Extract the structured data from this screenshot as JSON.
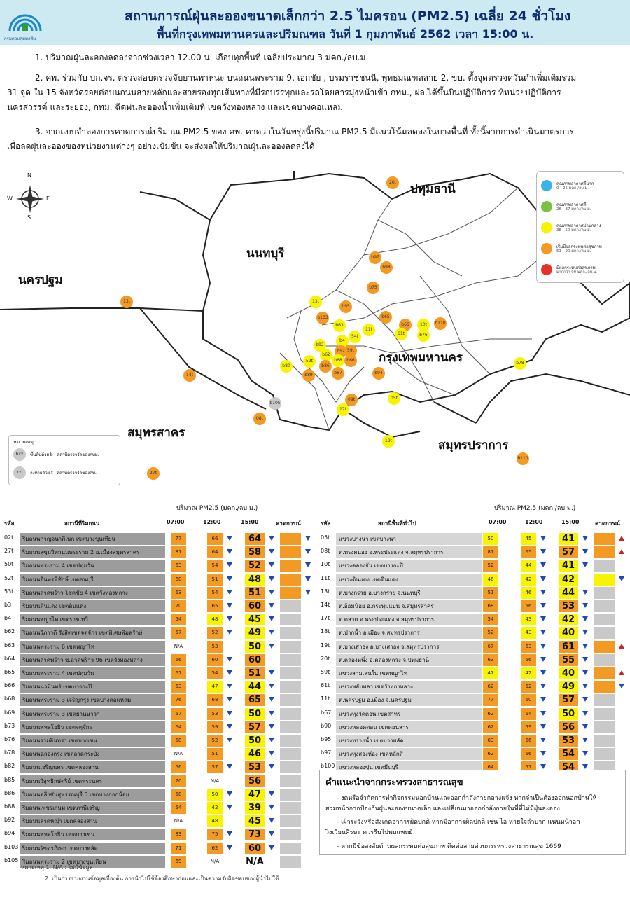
{
  "header": {
    "title": "สถานการณ์ฝุ่นละอองขนาดเล็กกว่า 2.5 ไมครอน (PM2.5) เฉลี่ย 24 ชั่วโมง",
    "subtitle": "พื้นที่กรุงเทพมหานครและปริมณฑล วันที่ 1 กุมภาพันธ์ 2562 เวลา 15:00 น.",
    "logo_text": "กรมควบคุมมลพิษ"
  },
  "summary": [
    "1. ปริมาณฝุ่นละอองลดลงจากช่วงเวลา 12.00 น. เกือบทุกพื้นที่ เฉลี่ยประมาณ 3 มคก./ลบ.ม.",
    "2. คพ. ร่วมกับ บก.จร. ตรวจสอบตรวจจับยานพาหนะ บนถนนพระราม 9, เอกชัย , บรมราชชนนี, พุทธมณฑลสาย 2, ขบ. ตั้งจุดตรวจควันดำเพิ่มเติมรวม",
    "31 จุด ใน 15 จังหวัดรอยต่อบนถนนสายหลักและสายรองทุกเส้นทางที่มีรถบรรทุกและรถโดยสารมุ่งหน้าเข้า กทม., ฝล.ได้ขึ้นบินปฏิบัติการ ที่หน่วยปฏิบัติการ",
    "นครสวรรค์ และระยอง, กทม. ฉีดพ่นละอองน้ำเพิ่มเติมที่ เขตวังทองหลาง และเขตบางคอแหลม",
    "3. จากแบบจำลองการคาดการณ์ปริมาณ PM2.5 ของ คพ. คาดว่าในวันพรุ่งนี้ปริมาณ PM2.5 มีแนวโน้มลดลงในบางพื้นที่ ทั้งนี้จากการดำเนินมาตรการ",
    "เพื่อลดฝุ่นละอองของหน่วยงานต่างๆ อย่างเข้มข้น จะส่งผลให้ปริมาณฝุ่นละอองลดลงได้"
  ],
  "map": {
    "compass": {
      "n": "N",
      "s": "S",
      "e": "E",
      "w": "W"
    },
    "provinces": {
      "pathum": "ปทุมธานี",
      "nonthaburi": "นนทบุรี",
      "nakhonpathom": "นครปฐม",
      "bangkok": "กรุงเทพมหานคร",
      "samutsakhon": "สมุทรสาคร",
      "samutprakan": "สมุทรปราการ"
    },
    "stations": [
      "20t",
      "b97",
      "b98",
      "b75",
      "13t",
      "b95",
      "b103",
      "13t",
      "b63",
      "11t",
      "b66",
      "10t",
      "b110",
      "b65",
      "54t",
      "61t",
      "b76",
      "b92",
      "b62",
      "b4",
      "b52",
      "b68",
      "b66",
      "59t",
      "b80",
      "52t",
      "b86",
      "b67",
      "b94",
      "b78",
      "14t",
      "b89",
      "b105",
      "08t",
      "05t",
      "17t",
      "09t",
      "19t",
      "27t",
      "b110"
    ]
  },
  "legend": [
    {
      "title": "คุณภาพอากาศดีมาก",
      "range": "0 - 25 มคก./ลบ.ม.",
      "color": "#3ab3ea"
    },
    {
      "title": "คุณภาพอากาศดี",
      "range": "26 - 37 มคก./ลบ.ม.",
      "color": "#7cc242"
    },
    {
      "title": "คุณภาพอากาศปานกลาง",
      "range": "38 - 50 มคก./ลบ.ม.",
      "color": "#f8f300"
    },
    {
      "title": "เริ่มมีผลกระทบต่อสุขภาพ",
      "range": "51 - 90 มคก./ลบ.ม.",
      "color": "#f39a25"
    },
    {
      "title": "มีผลกระทบต่อสุขภาพ",
      "range": "มากกว่า 90 มคก./ลบ.ม.",
      "color": "#e53228"
    }
  ],
  "map_note": {
    "title": "หมายเหตุ :",
    "b_label": "ขึ้นต้นด้วย b : สถานีตรวจวัดของกทม.",
    "t_label": "ลงท้ายด้วย t : สถานีตรวจวัดของคพ.",
    "b_sample": "bxx",
    "t_sample": "xxt"
  },
  "table_left": {
    "unit": "ปริมาณ PM2.5 (มคก./ลบ.ม.)",
    "headers": {
      "id": "รหัส",
      "name": "สถานีที่ริมถนน",
      "t1": "07:00",
      "t2": "12:00",
      "t3": "15:00",
      "forecast": "คาดการณ์"
    },
    "rows": [
      {
        "id": "02t",
        "name": "ริมถนนกาญจนาภิเษก เขตบางขุนเทียน",
        "v7": "77",
        "v12": "66",
        "v15": "64",
        "d12": "dn",
        "d15": "dn",
        "fc": "o",
        "fa": "dn"
      },
      {
        "id": "27t",
        "name": "ริมถนนสุขุมวิทถนนพระราม 2 อ.เมืองสมุทรสาคร",
        "v7": "81",
        "v12": "64",
        "v15": "58",
        "d12": "dn",
        "d15": "dn",
        "fc": "o",
        "fa": "dn"
      },
      {
        "id": "50t",
        "name": "ริมถนนพระราม 4 เขตปทุมวัน",
        "v7": "63",
        "v12": "54",
        "v15": "52",
        "d12": "dn",
        "d15": "dn",
        "fc": "o",
        "fa": "dn"
      },
      {
        "id": "52t",
        "name": "ริมถนนอินทรพิทักษ์ เขตธนบุรี",
        "v7": "60",
        "v12": "51",
        "v15": "48",
        "d12": "dn",
        "d15": "dn",
        "fc": "o",
        "fa": "dn"
      },
      {
        "id": "53t",
        "name": "ริมถนนลาดพร้าว โชคชัย 4 เขตวังทองหลาง",
        "v7": "63",
        "v12": "54",
        "v15": "51",
        "d12": "dn",
        "d15": "dn",
        "fc": "o",
        "fa": "dn"
      },
      {
        "id": "b3",
        "name": "ริมถนนดินแดง เขตดินแดง",
        "v7": "70",
        "v12": "65",
        "v15": "60",
        "d12": "dn",
        "d15": "dn",
        "fc": "g",
        "fa": ""
      },
      {
        "id": "b4",
        "name": "ริมถนนพญาไท เขตราชเทวี",
        "v7": "54",
        "v12": "48",
        "v15": "45",
        "d12": "dn",
        "d15": "dn",
        "fc": "g",
        "fa": ""
      },
      {
        "id": "b62",
        "name": "ริมถนนวิภาวดี รังสิตเขตจตุจักร เขตพิเศษพิมลรักษ์",
        "v7": "57",
        "v12": "52",
        "v15": "49",
        "d12": "dn",
        "d15": "dn",
        "fc": "g",
        "fa": ""
      },
      {
        "id": "b63",
        "name": "ริมถนนพระราม 6 เขตพญาไท",
        "v7": "N/A",
        "v12": "53",
        "v15": "50",
        "d12": "",
        "d15": "dn",
        "fc": "g",
        "fa": ""
      },
      {
        "id": "b64",
        "name": "ริมถนนลาดพร้าว ซ.ลาดพร้าว 96 เขตวังทองหลาง",
        "v7": "66",
        "v12": "60",
        "v15": "60",
        "d12": "dn",
        "d15": "",
        "fc": "g",
        "fa": ""
      },
      {
        "id": "b65",
        "name": "ริมถนนพระราม 4 เขตปทุมวัน",
        "v7": "61",
        "v12": "54",
        "v15": "51",
        "d12": "dn",
        "d15": "dn",
        "fc": "g",
        "fa": ""
      },
      {
        "id": "b66",
        "name": "ริมถนนนวมินทร์ เขตบางกะปิ",
        "v7": "53",
        "v12": "47",
        "v15": "44",
        "d12": "dn",
        "d15": "dn",
        "fc": "g",
        "fa": ""
      },
      {
        "id": "b68",
        "name": "ริมถนนพระราม 3 เจริญกรุง เขตบางคอแหลม",
        "v7": "76",
        "v12": "68",
        "v15": "65",
        "d12": "dn",
        "d15": "dn",
        "fc": "g",
        "fa": ""
      },
      {
        "id": "b69",
        "name": "ริมถนนพระราม 3 เขตยานนาวา",
        "v7": "57",
        "v12": "53",
        "v15": "50",
        "d12": "dn",
        "d15": "dn",
        "fc": "g",
        "fa": ""
      },
      {
        "id": "b73",
        "name": "ริมถนนพหลโยธิน เขตจตุจักร",
        "v7": "64",
        "v12": "59",
        "v15": "57",
        "d12": "dn",
        "d15": "dn",
        "fc": "g",
        "fa": ""
      },
      {
        "id": "b76",
        "name": "ริมถนนรามอินทรา เขตบางเขน",
        "v7": "58",
        "v12": "52",
        "v15": "50",
        "d12": "dn",
        "d15": "dn",
        "fc": "g",
        "fa": ""
      },
      {
        "id": "b78",
        "name": "ริมถนนฉลองกรุง เขตลาดกระบัง",
        "v7": "N/A",
        "v12": "51",
        "v15": "46",
        "d12": "",
        "d15": "dn",
        "fc": "g",
        "fa": ""
      },
      {
        "id": "b82",
        "name": "ริมถนนเจริญนคร เขตคลองสาน",
        "v7": "66",
        "v12": "57",
        "v15": "53",
        "d12": "dn",
        "d15": "dn",
        "fc": "g",
        "fa": ""
      },
      {
        "id": "b85",
        "name": "ริมถนนวิสุทธิกษัตริย์ เขตพระนคร",
        "v7": "70",
        "v12": "N/A",
        "v15": "56",
        "d12": "",
        "d15": "",
        "fc": "g",
        "fa": ""
      },
      {
        "id": "b86",
        "name": "ริมถนนตลิ่งชันสุพรรณบุรี 5 เขตบางกอกน้อย",
        "v7": "58",
        "v12": "50",
        "v15": "47",
        "d12": "dn",
        "d15": "dn",
        "fc": "g",
        "fa": ""
      },
      {
        "id": "b88",
        "name": "ริมถนนเพชรเกษม เขตภาษีเจริญ",
        "v7": "54",
        "v12": "42",
        "v15": "39",
        "d12": "dn",
        "d15": "dn",
        "fc": "g",
        "fa": ""
      },
      {
        "id": "b92",
        "name": "ริมถนนลาดหญ้า เขตคลองสาน",
        "v7": "N/A",
        "v12": "48",
        "v15": "45",
        "d12": "",
        "d15": "dn",
        "fc": "g",
        "fa": ""
      },
      {
        "id": "b94",
        "name": "ริมถนนพหลโยธิน เขตบางเขน",
        "v7": "83",
        "v12": "75",
        "v15": "73",
        "d12": "dn",
        "d15": "dn",
        "fc": "g",
        "fa": ""
      },
      {
        "id": "b103",
        "name": "ริมถนนรัชดาภิเษก เขตบางพลัด",
        "v7": "71",
        "v12": "62",
        "v15": "60",
        "d12": "dn",
        "d15": "dn",
        "fc": "g",
        "fa": ""
      },
      {
        "id": "b105",
        "name": "ริมถนนพระราม 2 เขตบางขุนเทียน",
        "v7": "69",
        "v12": "N/A",
        "v15": "N/A",
        "d12": "",
        "d15": "",
        "fc": "g",
        "fa": ""
      }
    ]
  },
  "table_right": {
    "unit": "ปริมาณ PM2.5 (มคก./ลบ.ม.)",
    "headers": {
      "id": "รหัส",
      "name": "สถานีพื้นที่ทั่วไป",
      "t1": "07:00",
      "t2": "12:00",
      "t3": "15:00",
      "forecast": "คาดการณ์"
    },
    "rows": [
      {
        "id": "05t",
        "name": "แขวงบางนา เขตบางนา",
        "v7": "50",
        "v12": "45",
        "v15": "41",
        "d12": "dn",
        "d15": "dn",
        "fc": "o",
        "fa": "up"
      },
      {
        "id": "08t",
        "name": "ต.ทรงคนอง อ.พระประแดง จ.สมุทรปราการ",
        "v7": "81",
        "v12": "65",
        "v15": "57",
        "d12": "dn",
        "d15": "dn",
        "fc": "o",
        "fa": "up"
      },
      {
        "id": "10t",
        "name": "แขวงคลองจั่น เขตบางกะปิ",
        "v7": "52",
        "v12": "44",
        "v15": "41",
        "d12": "dn",
        "d15": "dn",
        "fc": "g",
        "fa": ""
      },
      {
        "id": "11t",
        "name": "แขวงดินแดง เขตดินแดง",
        "v7": "46",
        "v12": "42",
        "v15": "42",
        "d12": "dn",
        "d15": "",
        "fc": "y",
        "fa": "dn"
      },
      {
        "id": "13t",
        "name": "ต.บางกรวย อ.บางกรวย จ.นนทบุรี",
        "v7": "51",
        "v12": "46",
        "v15": "44",
        "d12": "dn",
        "d15": "dn",
        "fc": "g",
        "fa": ""
      },
      {
        "id": "14t",
        "name": "ต.อ้อมน้อย อ.กระทุ่มแบน จ.สมุทรสาคร",
        "v7": "68",
        "v12": "56",
        "v15": "53",
        "d12": "dn",
        "d15": "dn",
        "fc": "g",
        "fa": ""
      },
      {
        "id": "17t",
        "name": "ต.ตลาด อ.พระประแดง จ.สมุทรปราการ",
        "v7": "54",
        "v12": "43",
        "v15": "42",
        "d12": "dn",
        "d15": "dn",
        "fc": "g",
        "fa": ""
      },
      {
        "id": "18t",
        "name": "ต.ปากน้ำ อ.เมือง จ.สมุทรปราการ",
        "v7": "52",
        "v12": "43",
        "v15": "40",
        "d12": "dn",
        "d15": "dn",
        "fc": "g",
        "fa": ""
      },
      {
        "id": "19t",
        "name": "ต.บางเสาธง อ.บางเสาธง จ.สมุทรปราการ",
        "v7": "67",
        "v12": "63",
        "v15": "61",
        "d12": "dn",
        "d15": "dn",
        "fc": "o",
        "fa": "up"
      },
      {
        "id": "20t",
        "name": "ต.คลองหนึ่ง อ.คลองหลวง จ.ปทุมธานี",
        "v7": "63",
        "v12": "56",
        "v15": "55",
        "d12": "dn",
        "d15": "dn",
        "fc": "g",
        "fa": ""
      },
      {
        "id": "59t",
        "name": "แขวงสามเสนใน เขตพญาไท",
        "v7": "47",
        "v12": "42",
        "v15": "40",
        "d12": "dn",
        "d15": "dn",
        "fc": "o",
        "fa": "up"
      },
      {
        "id": "61t",
        "name": "แขวงพลับพลา เขตวังทองหลาง",
        "v7": "62",
        "v12": "52",
        "v15": "49",
        "d12": "dn",
        "d15": "dn",
        "fc": "o",
        "fa": "dn"
      },
      {
        "id": "11t",
        "name": "ต.นครปฐม อ.เมือง จ.นครปฐม",
        "v7": "77",
        "v12": "60",
        "v15": "57",
        "d12": "dn",
        "d15": "dn",
        "fc": "g",
        "fa": ""
      },
      {
        "id": "b67",
        "name": "แขวงทุ่งวัดดอน เขตสาทร",
        "v7": "62",
        "v12": "54",
        "v15": "50",
        "d12": "dn",
        "d15": "dn",
        "fc": "g",
        "fa": ""
      },
      {
        "id": "b90",
        "name": "แขวงหลอดดอน เขตดอนสาร",
        "v7": "62",
        "v12": "59",
        "v15": "56",
        "d12": "dn",
        "d15": "dn",
        "fc": "g",
        "fa": ""
      },
      {
        "id": "b95",
        "name": "แขวงทรายน้ำ เขตบางพลัด",
        "v7": "63",
        "v12": "56",
        "v15": "53",
        "d12": "dn",
        "d15": "dn",
        "fc": "g",
        "fa": ""
      },
      {
        "id": "b97",
        "name": "แขวงทุ่งสองห้อง เขตหลักสี่",
        "v7": "62",
        "v12": "56",
        "v15": "54",
        "d12": "dn",
        "d15": "dn",
        "fc": "g",
        "fa": ""
      },
      {
        "id": "b100",
        "name": "แขวงหลองขุ่น เขตมีนบุรี",
        "v7": "64",
        "v12": "57",
        "v15": "54",
        "d12": "dn",
        "d15": "dn",
        "fc": "g",
        "fa": ""
      }
    ]
  },
  "advice": {
    "title": "คำแนะนำจากกระทรวงสาธารณสุข",
    "items": [
      "- งดหรือจำกัดการทำกิจกรรมนอกบ้านและออกกำลังกายกลางแจ้ง หากจำเป็นต้องออกนอกบ้านให้",
      "สวมหน้ากากป้องกันฝุ่นละอองขนาดเล็ก และเปลี่ยนมาออกกำลังกายในที่ที่ไม่มีฝุ่นละออง",
      "- เฝ้าระวังหรือสังเกตอาการผิดปกติ หากมีอาการผิดปกติ เช่น ไอ หายใจลำบาก แน่นหน้าอก",
      "วิงเวียนศีรษะ ควรรีบไปพบแพทย์",
      "- หากมีข้อสงสัยด้านผลกระทบต่อสุขภาพ ติดต่อสายด่วนกระทรวงสาธารณสุข 1669"
    ]
  },
  "footnotes": [
    "หมายเหตุ 1. N/A : ไม่มีข้อมูล",
    "2. เป็นการรายงานข้อมูลเบื้องต้น การนำไปใช้ต้องศึกษาก่อนและเป็นความรับผิดชอบของผู้นำไปใช้"
  ]
}
